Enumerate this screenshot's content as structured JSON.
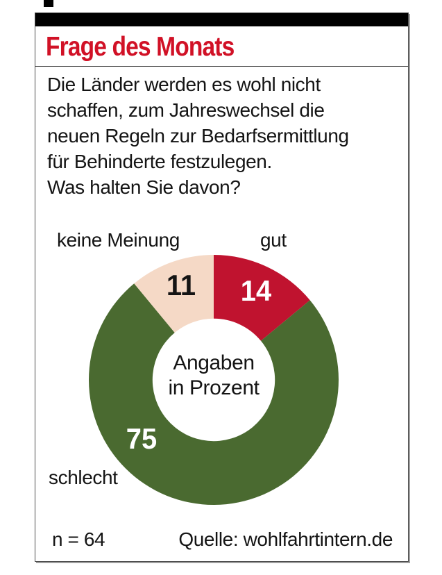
{
  "page": {
    "title": "Frage des Monats",
    "question": "Die Länder werden es wohl nicht\nschaffen, zum Jahreswechsel die\nneuen Regeln zur Bedarfsermittlung\nfür Behinderte festzulegen.\nWas halten Sie davon?",
    "footer": {
      "sample_size": "n = 64",
      "source": "Quelle: wohlfahrtintern.de"
    },
    "colors": {
      "title_red": "#d11126",
      "top_bar": "#000000"
    }
  },
  "chart_data": {
    "type": "pie",
    "subtype": "donut",
    "title": "Frage des Monats",
    "unit": "Prozent",
    "center_label": "Angaben\nin Prozent",
    "categories": [
      "gut",
      "schlecht",
      "keine Meinung"
    ],
    "values": [
      14,
      75,
      11
    ],
    "segments": [
      {
        "label": "gut",
        "value": 14,
        "color": "#c0132f",
        "value_label_color": "#ffffff"
      },
      {
        "label": "schlecht",
        "value": 75,
        "color": "#4a6a30",
        "value_label_color": "#ffffff"
      },
      {
        "label": "keine Meinung",
        "value": 11,
        "color": "#f5d9c6",
        "value_label_color": "#141414"
      }
    ],
    "start_angle_deg": 0,
    "direction": "clockwise",
    "inner_radius_ratio": 0.49,
    "sample_size": 64,
    "source": "wohlfahrtintern.de",
    "legend_position": "none"
  }
}
